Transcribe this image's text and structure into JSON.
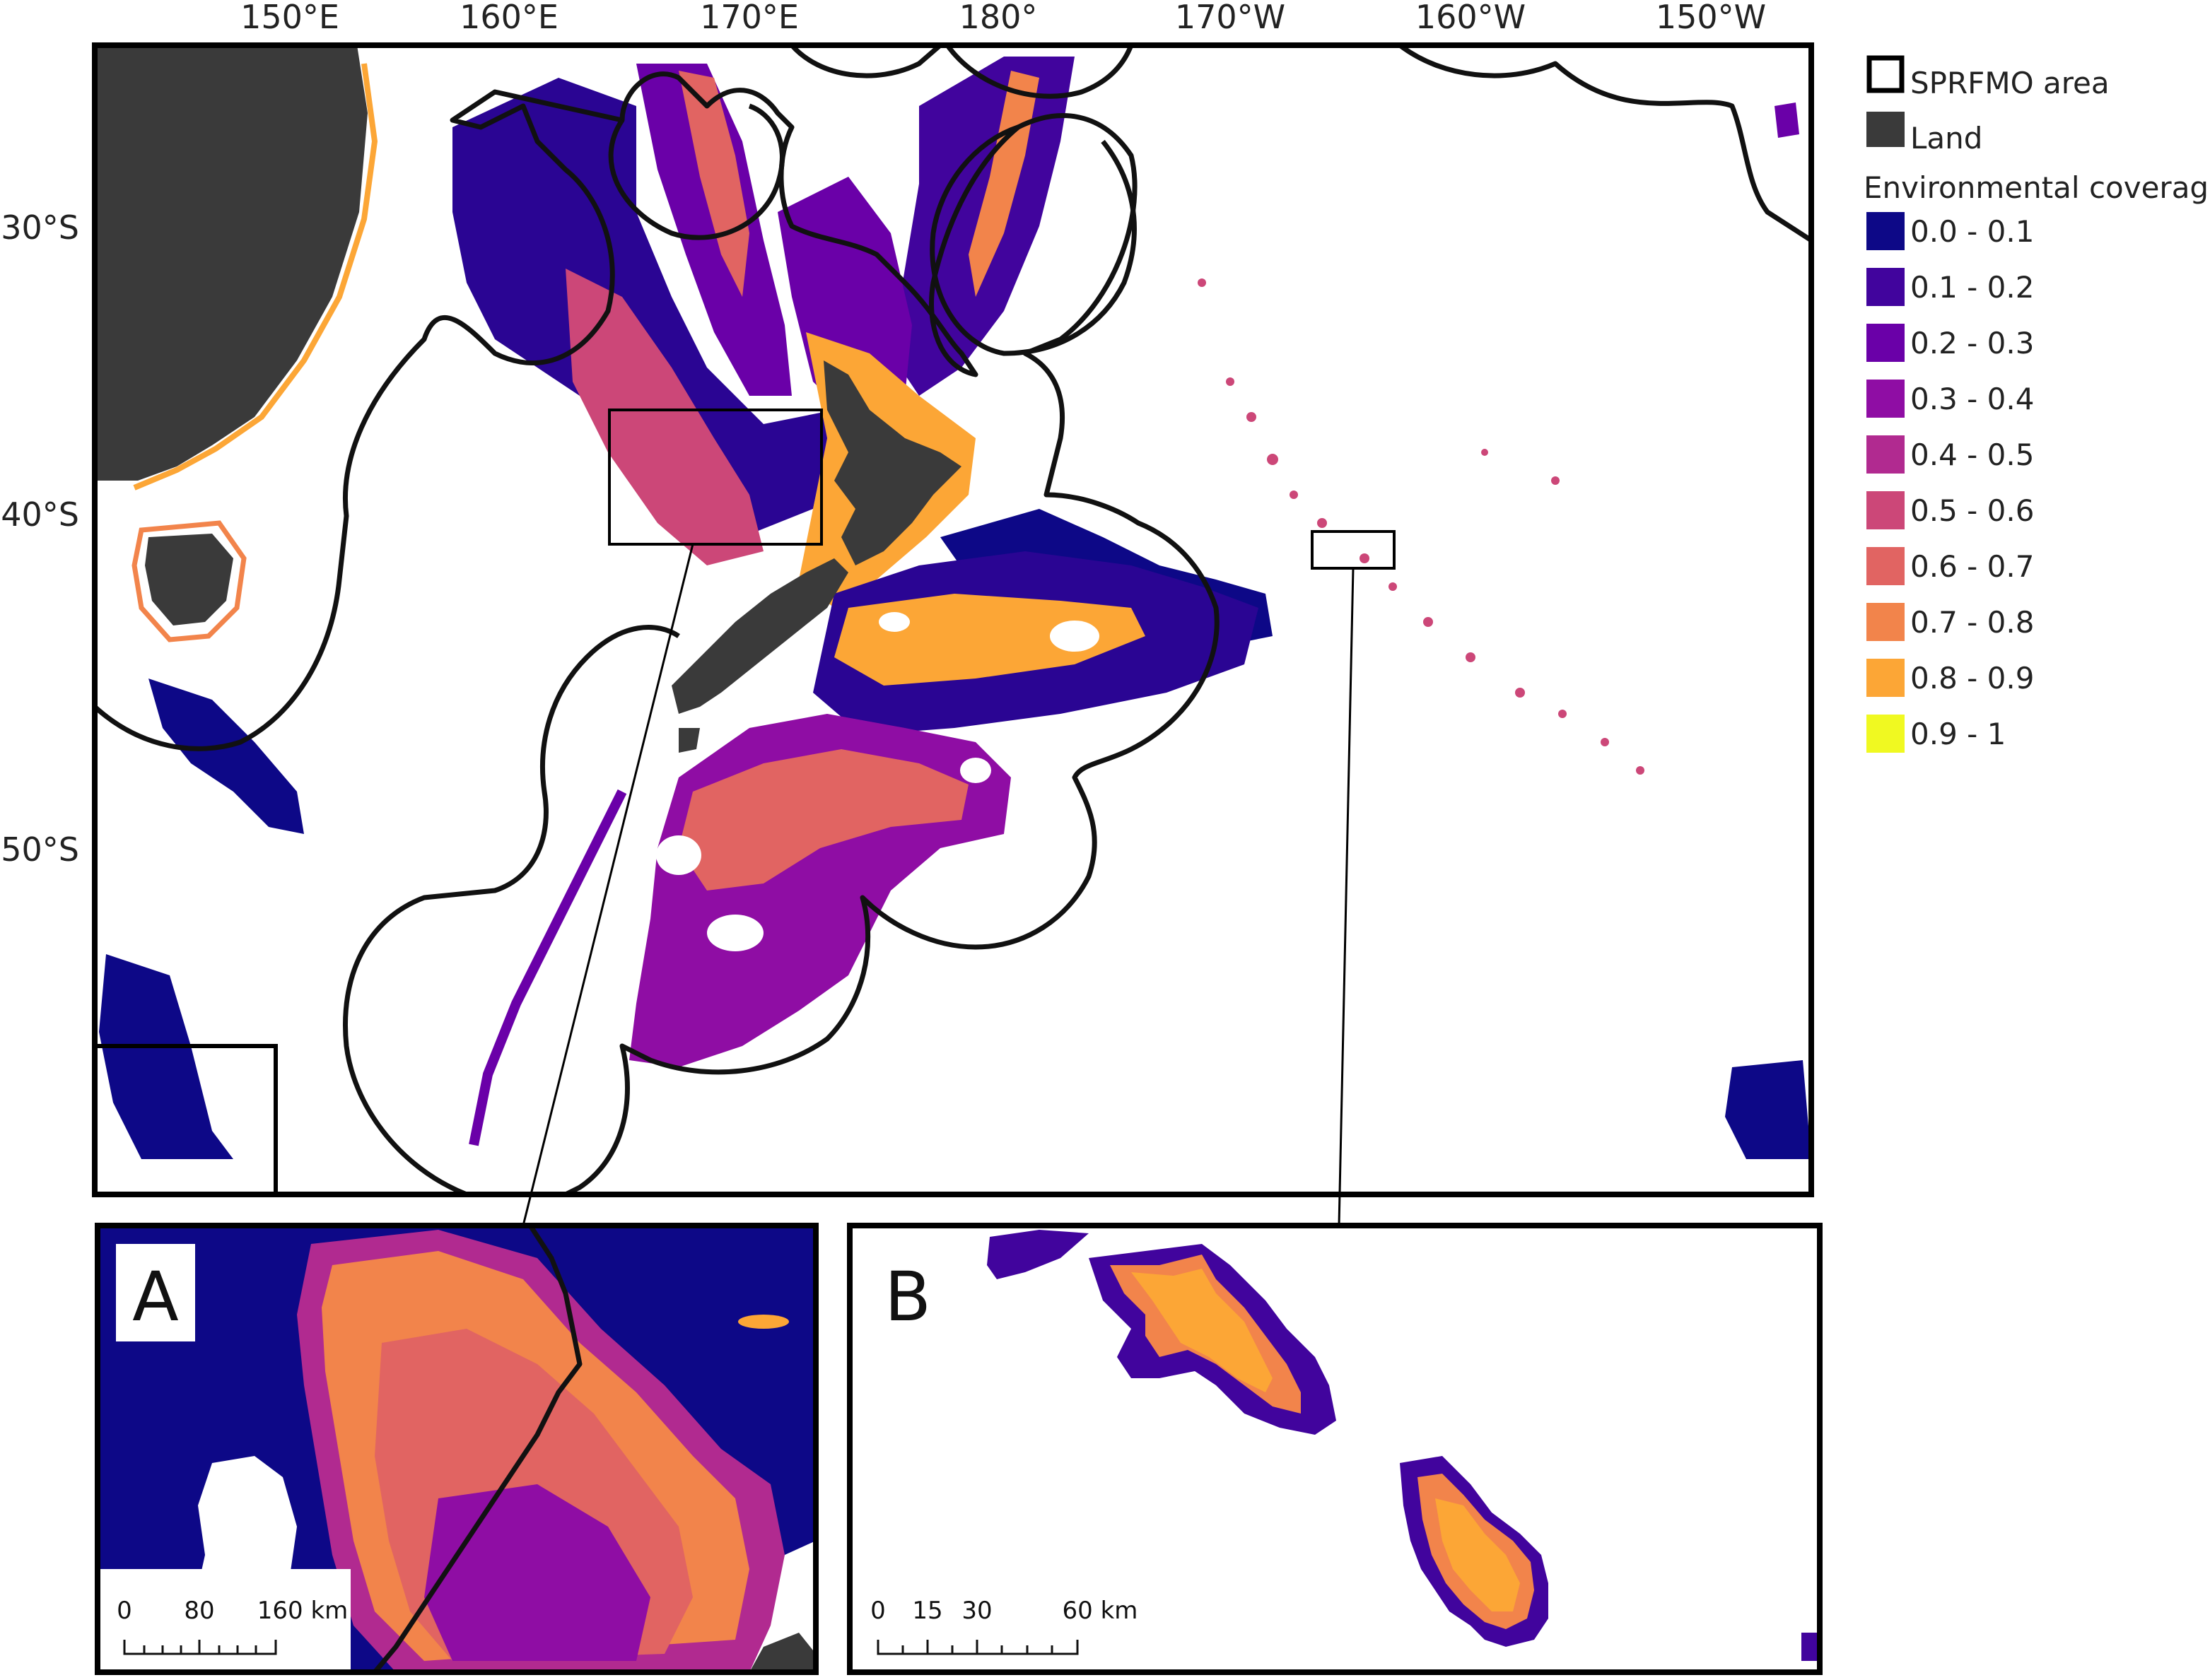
{
  "map": {
    "longitude_labels": [
      "150°E",
      "160°E",
      "170°E",
      "180°",
      "170°W",
      "160°W",
      "150°W"
    ],
    "latitude_labels": [
      "30°S",
      "40°S",
      "50°S"
    ]
  },
  "legend": {
    "sprfmo_label": "SPRFMO area",
    "land_label": "Land",
    "coverage_title": "Environmental coverage",
    "classes": [
      {
        "label": "0.0 - 0.1",
        "color": "#0d0887"
      },
      {
        "label": "0.1 - 0.2",
        "color": "#41049d"
      },
      {
        "label": "0.2 - 0.3",
        "color": "#6a00a8"
      },
      {
        "label": "0.3 - 0.4",
        "color": "#8f0da4"
      },
      {
        "label": "0.4 - 0.5",
        "color": "#b12a90"
      },
      {
        "label": "0.5 - 0.6",
        "color": "#cc4778"
      },
      {
        "label": "0.6 - 0.7",
        "color": "#e16462"
      },
      {
        "label": "0.7 - 0.8",
        "color": "#f2844b"
      },
      {
        "label": "0.8 - 0.9",
        "color": "#fca636"
      },
      {
        "label": "0.9 - 1",
        "color": "#f0f921"
      }
    ],
    "land_color": "#3a3a3a"
  },
  "inset_a": {
    "letter": "A",
    "scale_labels": [
      "0",
      "80",
      "160 km"
    ]
  },
  "inset_b": {
    "letter": "B",
    "scale_labels": [
      "0",
      "15",
      "30",
      "60 km"
    ]
  }
}
